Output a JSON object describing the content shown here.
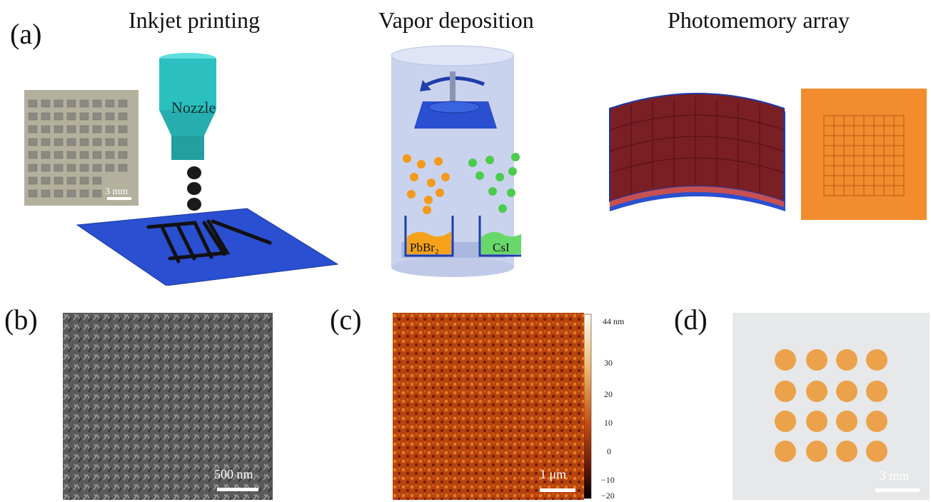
{
  "figure": {
    "panels": {
      "a": {
        "label": "(a)",
        "sections": [
          {
            "title": "Inkjet printing",
            "nozzle_label": "Nozzle",
            "scale_bar": "3 mm"
          },
          {
            "title": "Vapor deposition",
            "source_left": "PbBr₂",
            "source_right": "CsI"
          },
          {
            "title": "Photomemory array"
          }
        ]
      },
      "b": {
        "label": "(b)",
        "scale_bar": "500 nm"
      },
      "c": {
        "label": "(c)",
        "scale_bar": "1 μm",
        "colorbar": {
          "unit_label": "44 nm",
          "ticks": [
            "30",
            "20",
            "10",
            "0",
            "−10",
            "−20"
          ]
        }
      },
      "d": {
        "label": "(d)",
        "scale_bar": "3 mm"
      }
    },
    "colors": {
      "nozzle": "#2bbfbf",
      "substrate": "#2a4fd0",
      "chamber": "#c9d3ee",
      "particle_orange": "#f39a1a",
      "particle_green": "#4ccc4c",
      "array": "#7a1f24",
      "film_orange": "#f28c2e"
    }
  }
}
